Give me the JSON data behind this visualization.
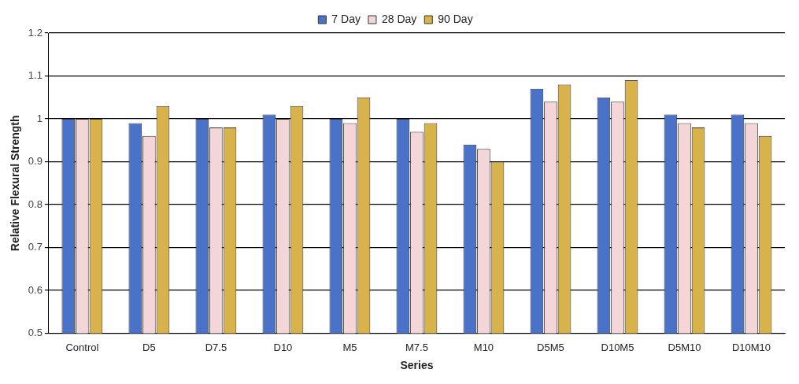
{
  "chart_data": {
    "type": "bar",
    "xlabel": "Series",
    "ylabel": "Relative Flexural Strength",
    "categories": [
      "Control",
      "D5",
      "D7.5",
      "D10",
      "M5",
      "M7.5",
      "M10",
      "D5M5",
      "D10M5",
      "D5M10",
      "D10M10"
    ],
    "series": [
      {
        "name": "7 Day",
        "color": "#4a72c8",
        "values": [
          1,
          0.99,
          1.0,
          1.01,
          1.0,
          1.0,
          0.94,
          1.07,
          1.05,
          1.01,
          1.01
        ]
      },
      {
        "name": "28 Day",
        "color": "#f4d6d9",
        "values": [
          1,
          0.96,
          0.98,
          1.0,
          0.99,
          0.97,
          0.93,
          1.04,
          1.04,
          0.99,
          0.99
        ]
      },
      {
        "name": "90 Day",
        "color": "#d8b24a",
        "values": [
          1,
          1.03,
          0.98,
          1.03,
          1.05,
          0.99,
          0.9,
          1.08,
          1.09,
          0.98,
          0.96
        ]
      }
    ],
    "ylim": [
      0.5,
      1.2
    ],
    "yticks": [
      0.5,
      0.6,
      0.7,
      0.8,
      0.9,
      1,
      1.1,
      1.2
    ],
    "grid": "y",
    "legend": "top"
  }
}
